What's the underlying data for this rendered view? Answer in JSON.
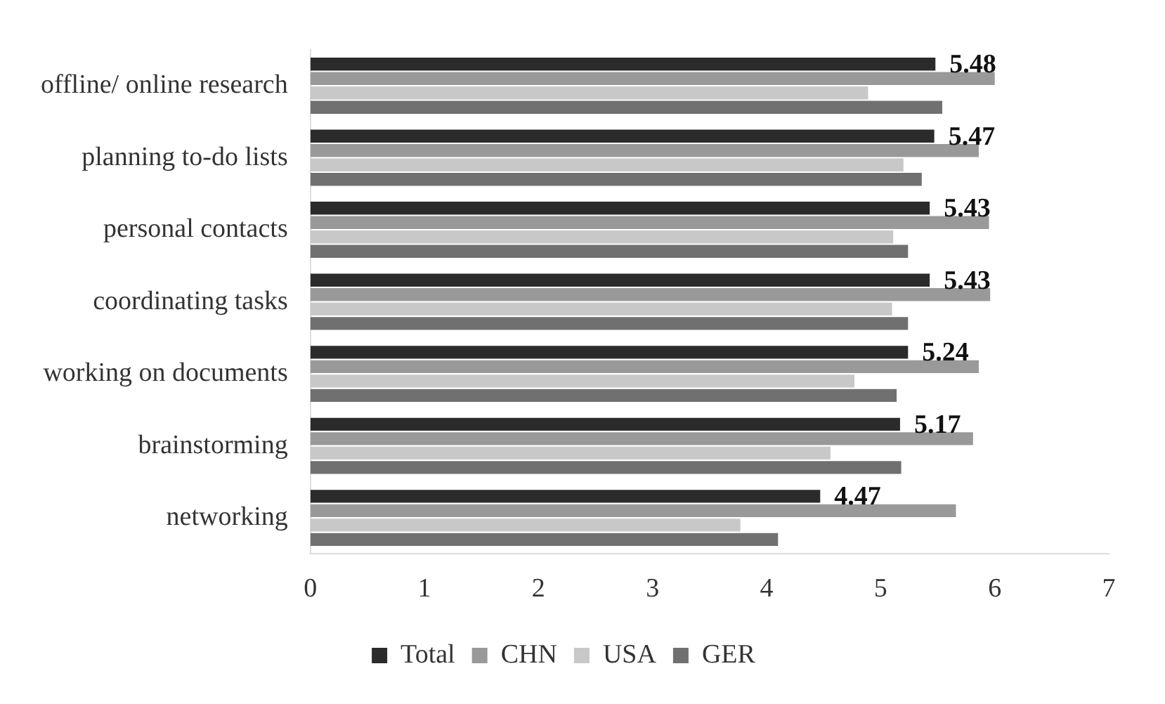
{
  "chart_data": {
    "type": "bar",
    "orientation": "horizontal",
    "categories": [
      "offline/ online research",
      "planning to-do lists",
      "personal contacts",
      "coordinating tasks",
      "working on documents",
      "brainstorming",
      "networking"
    ],
    "series": [
      {
        "name": "Total",
        "color": "#2b2b2b",
        "values": [
          5.48,
          5.47,
          5.43,
          5.43,
          5.24,
          5.17,
          4.47
        ],
        "value_labels": [
          "5.48",
          "5.47",
          "5.43",
          "5.43",
          "5.24",
          "5.17",
          "4.47"
        ]
      },
      {
        "name": "CHN",
        "color": "#999999",
        "values": [
          6.0,
          5.86,
          5.95,
          5.96,
          5.86,
          5.81,
          5.66
        ]
      },
      {
        "name": "USA",
        "color": "#c8c8c8",
        "values": [
          4.89,
          5.2,
          5.11,
          5.1,
          4.77,
          4.56,
          3.77
        ]
      },
      {
        "name": "GER",
        "color": "#707070",
        "values": [
          5.54,
          5.36,
          5.24,
          5.24,
          5.14,
          5.18,
          4.1
        ]
      }
    ],
    "xlim": [
      0,
      7
    ],
    "xticks": [
      0,
      1,
      2,
      3,
      4,
      5,
      6,
      7
    ],
    "grid": false,
    "legend": "bottom"
  }
}
